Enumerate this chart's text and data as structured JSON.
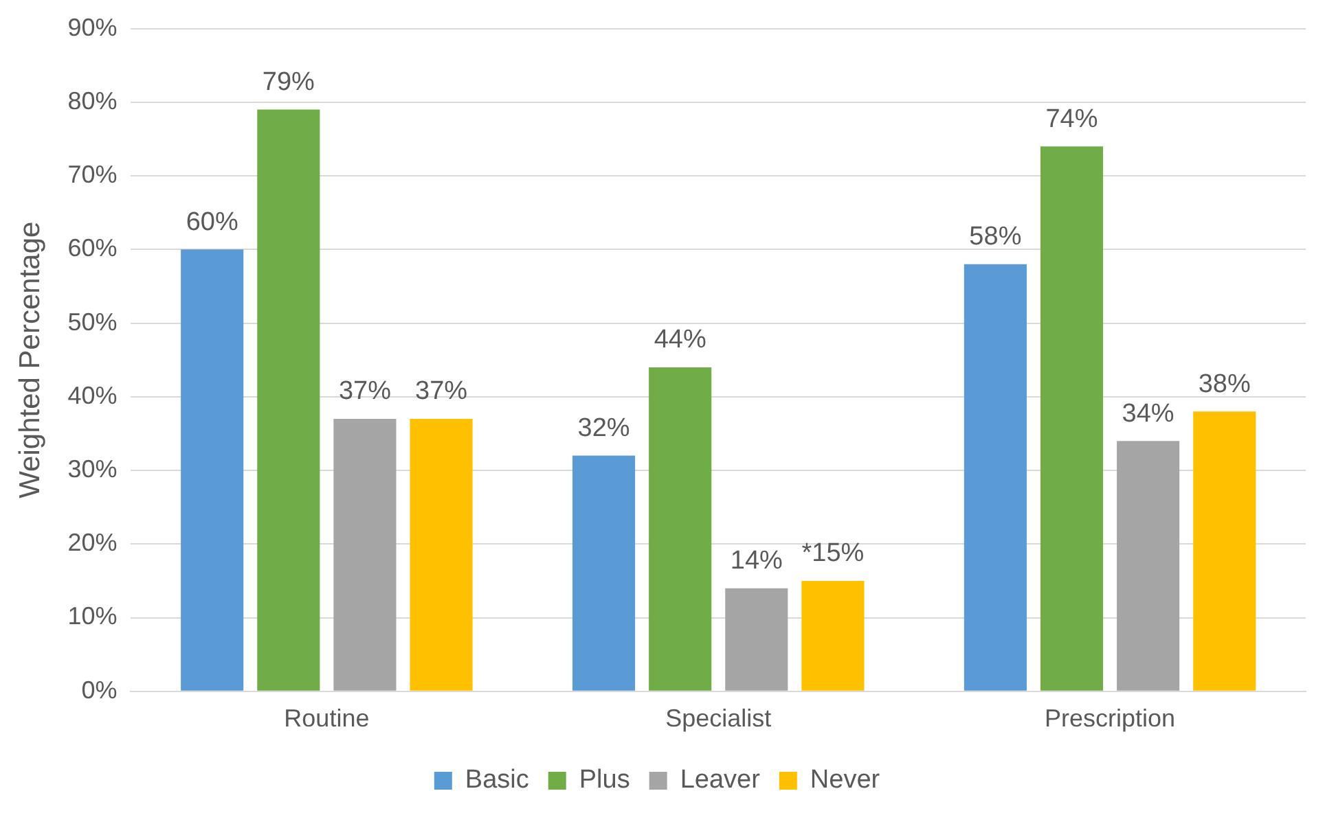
{
  "chart_data": {
    "type": "bar",
    "ylabel": "Weighted Percentage",
    "categories": [
      "Routine",
      "Specialist",
      "Prescription"
    ],
    "series": [
      {
        "name": "Basic",
        "color": "#5b9bd5",
        "values": [
          60,
          32,
          58
        ],
        "value_labels": [
          "60%",
          "32%",
          "58%"
        ]
      },
      {
        "name": "Plus",
        "color": "#70ad47",
        "values": [
          79,
          44,
          74
        ],
        "value_labels": [
          "79%",
          "44%",
          "74%"
        ]
      },
      {
        "name": "Leaver",
        "color": "#a5a5a5",
        "values": [
          37,
          14,
          34
        ],
        "value_labels": [
          "37%",
          "14%",
          "34%"
        ]
      },
      {
        "name": "Never",
        "color": "#ffc000",
        "values": [
          37,
          15,
          38
        ],
        "value_labels": [
          "37%",
          "*15%",
          "38%"
        ]
      }
    ],
    "ylim": [
      0,
      90
    ],
    "yticks": [
      {
        "value": 0,
        "label": "0%"
      },
      {
        "value": 10,
        "label": "10%"
      },
      {
        "value": 20,
        "label": "20%"
      },
      {
        "value": 30,
        "label": "30%"
      },
      {
        "value": 40,
        "label": "40%"
      },
      {
        "value": 50,
        "label": "50%"
      },
      {
        "value": 60,
        "label": "60%"
      },
      {
        "value": 70,
        "label": "70%"
      },
      {
        "value": 80,
        "label": "80%"
      },
      {
        "value": 90,
        "label": "90%"
      }
    ],
    "grid": "y",
    "legend": "bottom"
  }
}
